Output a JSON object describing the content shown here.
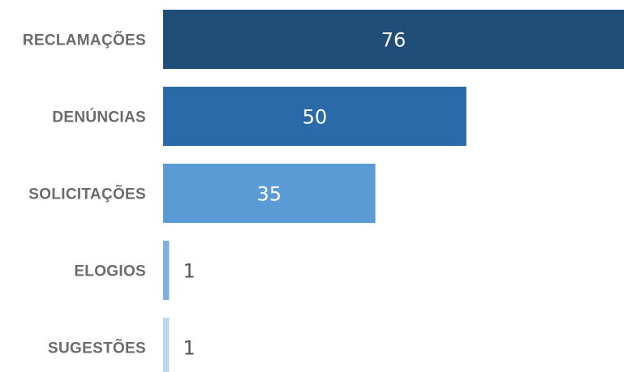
{
  "chart_data": {
    "type": "bar",
    "orientation": "horizontal",
    "categories": [
      "RECLAMAÇÕES",
      "DENÚNCIAS",
      "SOLICITAÇÕES",
      "ELOGIOS",
      "SUGESTÕES"
    ],
    "values": [
      76,
      50,
      35,
      1,
      1
    ],
    "value_labels": [
      "76",
      "50",
      "35",
      "1",
      "1"
    ],
    "colors": [
      "#1f4e79",
      "#2a6aa8",
      "#5b9bd5",
      "#7fb0e0",
      "#bdd7ee"
    ],
    "title": "",
    "xlabel": "",
    "ylabel": "",
    "xlim": [
      0,
      76
    ],
    "grid": false,
    "legend": "none"
  }
}
